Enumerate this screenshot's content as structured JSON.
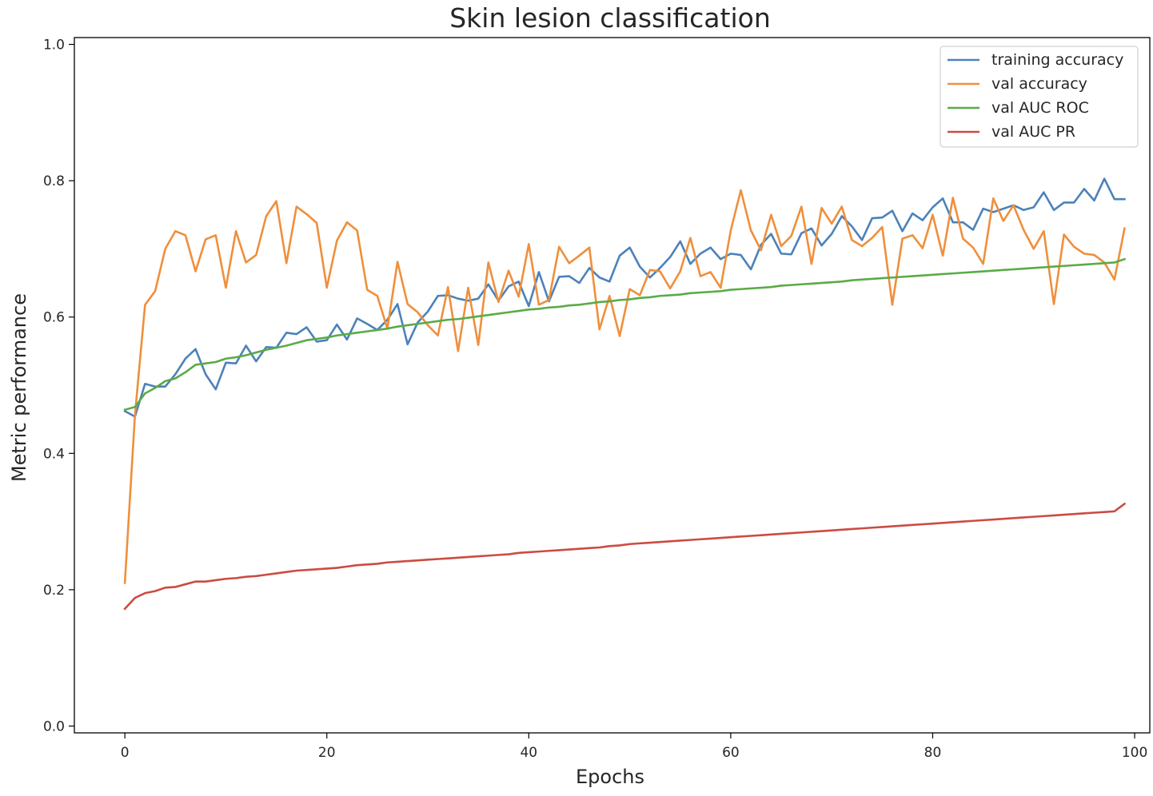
{
  "chart_data": {
    "type": "line",
    "title": "Skin lesion classification",
    "xlabel": "Epochs",
    "ylabel": "Metric performance",
    "xlim": [
      -5,
      101.5
    ],
    "ylim": [
      -0.01,
      1.01
    ],
    "xticks": [
      0,
      20,
      40,
      60,
      80,
      100
    ],
    "yticks": [
      0.0,
      0.2,
      0.4,
      0.6,
      0.8,
      1.0
    ],
    "ytick_labels": [
      "0.0",
      "0.2",
      "0.4",
      "0.6",
      "0.8",
      "1.0"
    ],
    "grid": false,
    "legend_position": "top-right",
    "x": [
      0,
      1,
      2,
      3,
      4,
      5,
      6,
      7,
      8,
      9,
      10,
      11,
      12,
      13,
      14,
      15,
      16,
      17,
      18,
      19,
      20,
      21,
      22,
      23,
      24,
      25,
      26,
      27,
      28,
      29,
      30,
      31,
      32,
      33,
      34,
      35,
      36,
      37,
      38,
      39,
      40,
      41,
      42,
      43,
      44,
      45,
      46,
      47,
      48,
      49,
      50,
      51,
      52,
      53,
      54,
      55,
      56,
      57,
      58,
      59,
      60,
      61,
      62,
      63,
      64,
      65,
      66,
      67,
      68,
      69,
      70,
      71,
      72,
      73,
      74,
      75,
      76,
      77,
      78,
      79,
      80,
      81,
      82,
      83,
      84,
      85,
      86,
      87,
      88,
      89,
      90,
      91,
      92,
      93,
      94,
      95,
      96,
      97,
      98,
      99
    ],
    "series": [
      {
        "name": "training accuracy",
        "color": "#4c82b9",
        "values": [
          0.462,
          0.454,
          0.502,
          0.498,
          0.498,
          0.516,
          0.539,
          0.553,
          0.516,
          0.494,
          0.533,
          0.532,
          0.558,
          0.535,
          0.556,
          0.555,
          0.577,
          0.575,
          0.585,
          0.564,
          0.566,
          0.589,
          0.567,
          0.598,
          0.59,
          0.581,
          0.596,
          0.619,
          0.56,
          0.592,
          0.608,
          0.631,
          0.632,
          0.627,
          0.624,
          0.627,
          0.648,
          0.624,
          0.645,
          0.652,
          0.616,
          0.666,
          0.623,
          0.659,
          0.66,
          0.65,
          0.672,
          0.658,
          0.652,
          0.69,
          0.702,
          0.674,
          0.658,
          0.672,
          0.688,
          0.711,
          0.678,
          0.693,
          0.702,
          0.685,
          0.693,
          0.691,
          0.67,
          0.706,
          0.722,
          0.693,
          0.692,
          0.723,
          0.73,
          0.705,
          0.722,
          0.748,
          0.733,
          0.713,
          0.745,
          0.746,
          0.756,
          0.726,
          0.752,
          0.742,
          0.761,
          0.774,
          0.739,
          0.739,
          0.728,
          0.759,
          0.754,
          0.759,
          0.764,
          0.757,
          0.761,
          0.783,
          0.757,
          0.768,
          0.768,
          0.788,
          0.771,
          0.803,
          0.773,
          0.773
        ]
      },
      {
        "name": "val accuracy",
        "color": "#ef8f3c",
        "values": [
          0.21,
          0.456,
          0.618,
          0.638,
          0.7,
          0.726,
          0.72,
          0.667,
          0.714,
          0.72,
          0.643,
          0.726,
          0.68,
          0.691,
          0.748,
          0.77,
          0.679,
          0.762,
          0.751,
          0.738,
          0.643,
          0.712,
          0.739,
          0.727,
          0.64,
          0.631,
          0.583,
          0.681,
          0.619,
          0.607,
          0.588,
          0.573,
          0.644,
          0.55,
          0.643,
          0.559,
          0.68,
          0.622,
          0.668,
          0.63,
          0.707,
          0.618,
          0.625,
          0.703,
          0.679,
          0.69,
          0.702,
          0.582,
          0.631,
          0.572,
          0.641,
          0.632,
          0.669,
          0.667,
          0.642,
          0.667,
          0.716,
          0.66,
          0.666,
          0.643,
          0.727,
          0.786,
          0.727,
          0.698,
          0.75,
          0.704,
          0.719,
          0.762,
          0.678,
          0.76,
          0.737,
          0.762,
          0.713,
          0.704,
          0.716,
          0.732,
          0.618,
          0.715,
          0.72,
          0.701,
          0.75,
          0.69,
          0.775,
          0.715,
          0.702,
          0.678,
          0.774,
          0.741,
          0.764,
          0.728,
          0.7,
          0.726,
          0.619,
          0.721,
          0.703,
          0.693,
          0.691,
          0.68,
          0.655,
          0.73
        ]
      },
      {
        "name": "val AUC ROC",
        "color": "#5aab47",
        "values": [
          0.464,
          0.468,
          0.488,
          0.496,
          0.506,
          0.51,
          0.519,
          0.53,
          0.532,
          0.534,
          0.539,
          0.541,
          0.544,
          0.548,
          0.552,
          0.555,
          0.558,
          0.562,
          0.566,
          0.568,
          0.57,
          0.573,
          0.575,
          0.577,
          0.579,
          0.581,
          0.583,
          0.586,
          0.588,
          0.59,
          0.592,
          0.594,
          0.596,
          0.597,
          0.599,
          0.601,
          0.603,
          0.605,
          0.607,
          0.609,
          0.611,
          0.612,
          0.614,
          0.615,
          0.617,
          0.618,
          0.62,
          0.622,
          0.623,
          0.625,
          0.626,
          0.628,
          0.629,
          0.631,
          0.632,
          0.633,
          0.635,
          0.636,
          0.637,
          0.638,
          0.64,
          0.641,
          0.642,
          0.643,
          0.644,
          0.646,
          0.647,
          0.648,
          0.649,
          0.65,
          0.651,
          0.652,
          0.654,
          0.655,
          0.656,
          0.657,
          0.658,
          0.659,
          0.66,
          0.661,
          0.662,
          0.663,
          0.664,
          0.665,
          0.666,
          0.667,
          0.668,
          0.669,
          0.67,
          0.671,
          0.672,
          0.673,
          0.674,
          0.675,
          0.676,
          0.677,
          0.678,
          0.679,
          0.68,
          0.685
        ]
      },
      {
        "name": "val AUC PR",
        "color": "#cc4b42",
        "values": [
          0.172,
          0.188,
          0.195,
          0.198,
          0.203,
          0.204,
          0.208,
          0.212,
          0.212,
          0.214,
          0.216,
          0.217,
          0.219,
          0.22,
          0.222,
          0.224,
          0.226,
          0.228,
          0.229,
          0.23,
          0.231,
          0.232,
          0.234,
          0.236,
          0.237,
          0.238,
          0.24,
          0.241,
          0.242,
          0.243,
          0.244,
          0.245,
          0.246,
          0.247,
          0.248,
          0.249,
          0.25,
          0.251,
          0.252,
          0.254,
          0.255,
          0.256,
          0.257,
          0.258,
          0.259,
          0.26,
          0.261,
          0.262,
          0.264,
          0.265,
          0.267,
          0.268,
          0.269,
          0.27,
          0.271,
          0.272,
          0.273,
          0.274,
          0.275,
          0.276,
          0.277,
          0.278,
          0.279,
          0.28,
          0.281,
          0.282,
          0.283,
          0.284,
          0.285,
          0.286,
          0.287,
          0.288,
          0.289,
          0.29,
          0.291,
          0.292,
          0.293,
          0.294,
          0.295,
          0.296,
          0.297,
          0.298,
          0.299,
          0.3,
          0.301,
          0.302,
          0.303,
          0.304,
          0.305,
          0.306,
          0.307,
          0.308,
          0.309,
          0.31,
          0.311,
          0.312,
          0.313,
          0.314,
          0.315,
          0.326
        ]
      }
    ]
  }
}
